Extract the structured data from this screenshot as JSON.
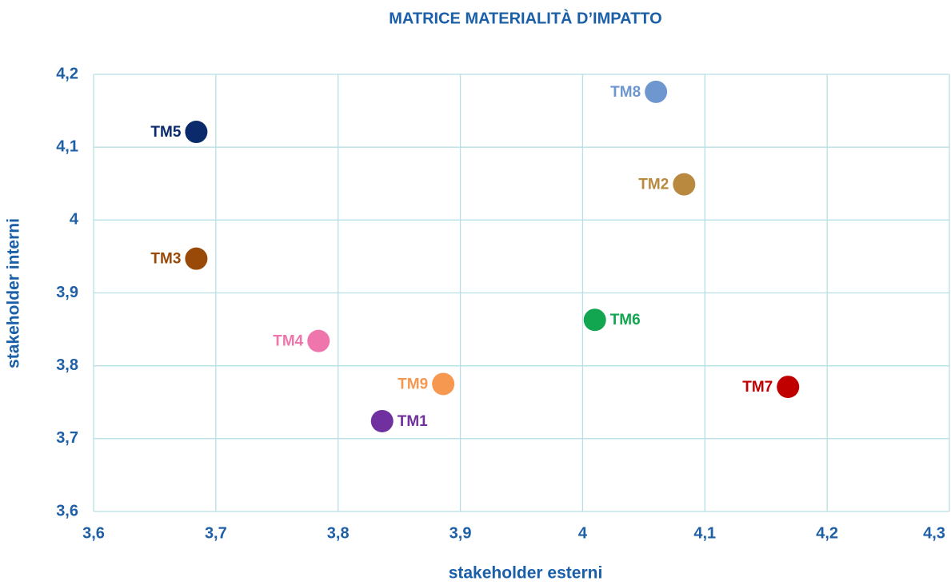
{
  "chart_data": {
    "type": "scatter",
    "title": "MATRICE MATERIALITÀ D’IMPATTO",
    "x_label": "stakeholder esterni",
    "y_label": "stakeholder interni",
    "xlim": [
      3.6,
      4.3
    ],
    "ylim": [
      3.6,
      4.2
    ],
    "xticks": [
      {
        "value": 3.6,
        "label": "3,6"
      },
      {
        "value": 3.7,
        "label": "3,7"
      },
      {
        "value": 3.8,
        "label": "3,8"
      },
      {
        "value": 3.9,
        "label": "3,9"
      },
      4,
      {
        "value": 4.1,
        "label": "4,1"
      },
      {
        "value": 4.2,
        "label": "4,2"
      },
      {
        "value": 4.3,
        "label": "4,3"
      }
    ],
    "yticks": [
      {
        "value": 3.6,
        "label": "3,6"
      },
      {
        "value": 3.7,
        "label": "3,7"
      },
      {
        "value": 3.8,
        "label": "3,8"
      },
      {
        "value": 3.9,
        "label": "3,9"
      },
      4,
      {
        "value": 4.1,
        "label": "4,1"
      },
      {
        "value": 4.2,
        "label": "4,2"
      }
    ],
    "grid": true,
    "series": [
      {
        "name": "TM8",
        "color": "#6f97cf",
        "x": [
          4.06
        ],
        "values": [
          4.176
        ],
        "label_side": "left"
      },
      {
        "name": "TM5",
        "color": "#0a2a6b",
        "x": [
          3.684
        ],
        "values": [
          4.121
        ],
        "label_side": "left"
      },
      {
        "name": "TM2",
        "color": "#b8893e",
        "x": [
          4.083
        ],
        "values": [
          4.049
        ],
        "label_side": "left"
      },
      {
        "name": "TM3",
        "color": "#9a4a08",
        "x": [
          3.684
        ],
        "values": [
          3.947
        ],
        "label_side": "left"
      },
      {
        "name": "TM6",
        "color": "#12a650",
        "x": [
          4.01
        ],
        "values": [
          3.863
        ],
        "label_side": "right"
      },
      {
        "name": "TM4",
        "color": "#ef76ad",
        "x": [
          3.784
        ],
        "values": [
          3.834
        ],
        "label_side": "left"
      },
      {
        "name": "TM9",
        "color": "#f6984f",
        "x": [
          3.886
        ],
        "values": [
          3.775
        ],
        "label_side": "left"
      },
      {
        "name": "TM1",
        "color": "#7030a0",
        "x": [
          3.836
        ],
        "values": [
          3.724
        ],
        "label_side": "right"
      },
      {
        "name": "TM7",
        "color": "#c00000",
        "x": [
          4.168
        ],
        "values": [
          3.771
        ],
        "label_side": "left"
      }
    ]
  }
}
